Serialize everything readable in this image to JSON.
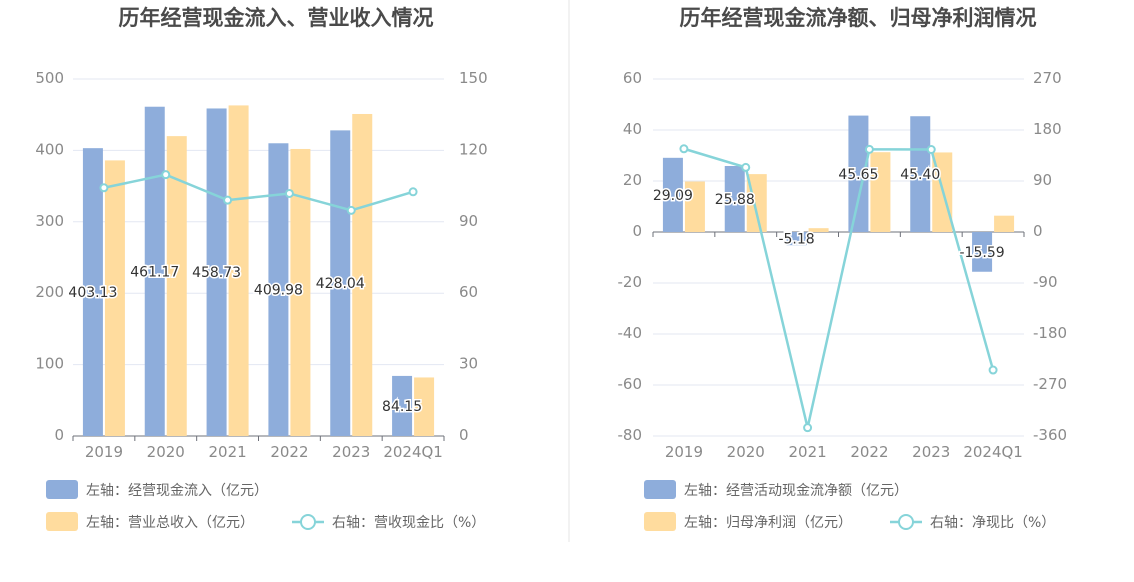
{
  "chart_data": [
    {
      "type": "bar",
      "title": "历年经营现金流入、营业收入情况",
      "categories": [
        "2019",
        "2020",
        "2021",
        "2022",
        "2023",
        "2024Q1"
      ],
      "left_axis": {
        "ylim": [
          0,
          500
        ],
        "ticks": [
          "0",
          "100",
          "200",
          "300",
          "400",
          "500"
        ]
      },
      "right_axis": {
        "ylim": [
          0,
          150
        ],
        "ticks": [
          "0",
          "30",
          "60",
          "90",
          "120",
          "150"
        ]
      },
      "series": [
        {
          "name": "左轴：经营现金流入（亿元）",
          "kind": "bar",
          "axis": "left",
          "color": "#8eaddb",
          "values": [
            403.13,
            461.17,
            458.73,
            409.98,
            428.04,
            84.15
          ],
          "labels": [
            "403.13",
            "461.17",
            "458.73",
            "409.98",
            "428.04",
            "84.15"
          ]
        },
        {
          "name": "左轴：营业总收入（亿元）",
          "kind": "bar",
          "axis": "left",
          "color": "#ffdc9e",
          "values": [
            386,
            420,
            463,
            402,
            451,
            82
          ]
        },
        {
          "name": "右轴：营收现金比（%）",
          "kind": "line",
          "axis": "right",
          "color": "#86d4d9",
          "values": [
            104.3,
            109.8,
            99.1,
            101.9,
            94.8,
            102.6
          ]
        }
      ],
      "grid": true,
      "legend_position": "bottom-left"
    },
    {
      "type": "bar",
      "title": "历年经营现金流净额、归母净利润情况",
      "categories": [
        "2019",
        "2020",
        "2021",
        "2022",
        "2023",
        "2024Q1"
      ],
      "left_axis": {
        "ylim": [
          -80,
          60
        ],
        "ticks": [
          "-80",
          "-60",
          "-40",
          "-20",
          "0",
          "20",
          "40",
          "60"
        ]
      },
      "right_axis": {
        "ylim": [
          -360,
          270
        ],
        "ticks": [
          "-360",
          "-270",
          "-180",
          "-90",
          "0",
          "90",
          "180",
          "270"
        ]
      },
      "series": [
        {
          "name": "左轴：经营活动现金流净额（亿元）",
          "kind": "bar",
          "axis": "left",
          "color": "#8eaddb",
          "values": [
            29.09,
            25.88,
            -5.18,
            45.65,
            45.4,
            -15.59
          ],
          "labels": [
            "29.09",
            "25.88",
            "-5.18",
            "45.65",
            "45.40",
            "-15.59"
          ]
        },
        {
          "name": "左轴：归母净利润（亿元）",
          "kind": "bar",
          "axis": "left",
          "color": "#ffdc9e",
          "values": [
            19.8,
            22.7,
            1.5,
            31.3,
            31.2,
            6.4
          ]
        },
        {
          "name": "右轴：净现比（%）",
          "kind": "line",
          "axis": "right",
          "color": "#86d4d9",
          "values": [
            146.9,
            114.0,
            -345.3,
            145.8,
            145.5,
            -243.6
          ]
        }
      ],
      "grid": true,
      "legend_position": "bottom-left"
    }
  ]
}
